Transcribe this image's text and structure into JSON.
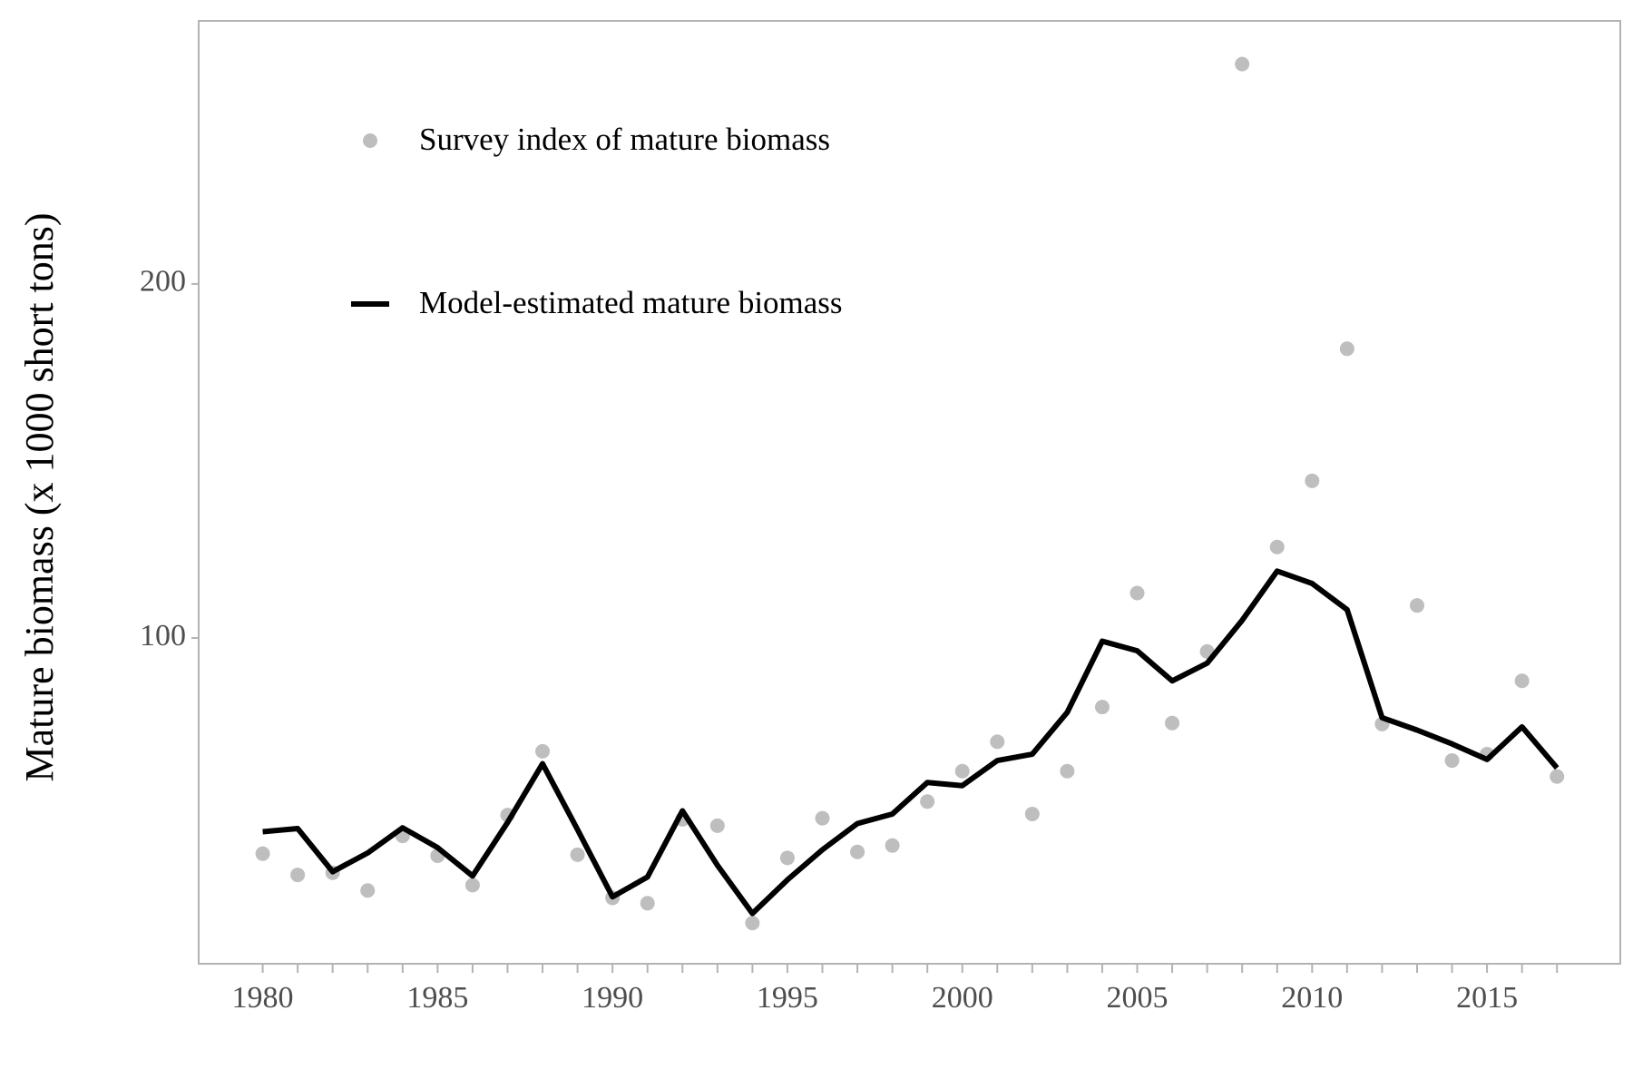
{
  "chart_data": {
    "type": "line",
    "y_label": "Mature biomass (x 1000 short tons)",
    "x": [
      1980,
      1981,
      1982,
      1983,
      1984,
      1985,
      1986,
      1987,
      1988,
      1989,
      1990,
      1991,
      1992,
      1993,
      1994,
      1995,
      1996,
      1997,
      1998,
      1999,
      2000,
      2001,
      2002,
      2003,
      2004,
      2005,
      2006,
      2007,
      2008,
      2009,
      2010,
      2011,
      2012,
      2013,
      2014,
      2015,
      2016,
      2017
    ],
    "series": [
      {
        "name": "Survey index of mature biomass",
        "kind": "points",
        "color": "#bebebe",
        "values": [
          39.1,
          33.1,
          33.7,
          28.7,
          44.1,
          38.5,
          30.2,
          50.0,
          68.0,
          38.8,
          26.6,
          25.1,
          48.8,
          47.0,
          19.5,
          37.9,
          49.1,
          39.6,
          41.4,
          53.8,
          62.4,
          70.7,
          50.3,
          62.4,
          80.5,
          112.7,
          76.0,
          96.2,
          262.1,
          125.7,
          144.4,
          181.7,
          75.7,
          109.2,
          65.4,
          67.2,
          87.9,
          60.9
        ]
      },
      {
        "name": "Model-estimated mature biomass",
        "kind": "line",
        "color": "#000000",
        "values": [
          45.3,
          46.2,
          34.0,
          39.3,
          46.4,
          40.8,
          32.8,
          47.9,
          64.5,
          45.9,
          26.9,
          32.5,
          51.2,
          35.8,
          22.2,
          31.7,
          40.2,
          47.6,
          50.3,
          59.2,
          58.3,
          65.4,
          67.2,
          79.0,
          99.1,
          96.4,
          87.9,
          92.9,
          105.0,
          118.9,
          115.4,
          108.0,
          77.5,
          74.0,
          70.1,
          65.7,
          74.9,
          63.3
        ]
      }
    ],
    "xlim": [
      1978.17,
      2018.81
    ],
    "xticks": [
      1980,
      1985,
      1990,
      1995,
      2000,
      2005,
      2010,
      2015
    ],
    "ylim": [
      8,
      274.3
    ],
    "yticks": [
      100,
      200
    ],
    "grid": false,
    "legend": "top-left"
  }
}
